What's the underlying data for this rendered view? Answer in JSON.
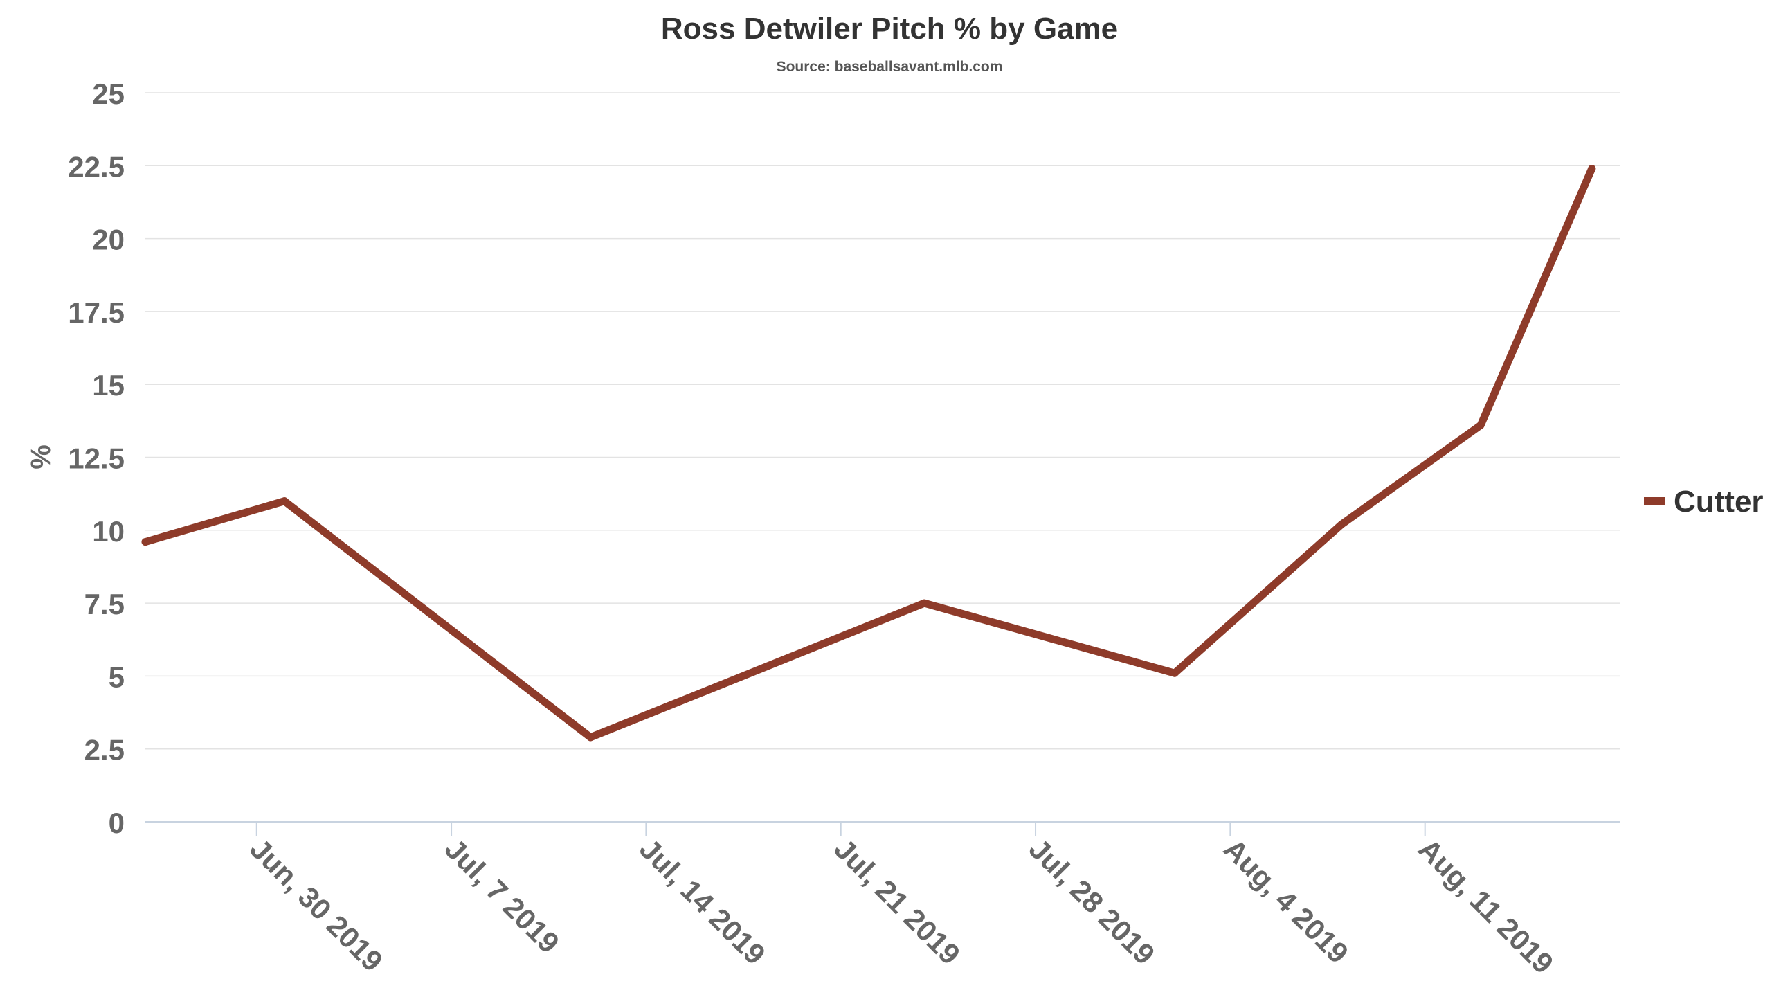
{
  "chart_data": {
    "type": "line",
    "title": "Ross Detwiler Pitch % by Game",
    "subtitle": "Source: baseballsavant.mlb.com",
    "xlabel": "",
    "ylabel": "%",
    "ylim": [
      0,
      25
    ],
    "y_ticks": [
      "0",
      "2.5",
      "5",
      "7.5",
      "10",
      "12.5",
      "15",
      "17.5",
      "20",
      "22.5",
      "25"
    ],
    "x_ticks": [
      {
        "label": "Jun, 30 2019",
        "date": "2019-06-30"
      },
      {
        "label": "Jul, 7 2019",
        "date": "2019-07-07"
      },
      {
        "label": "Jul, 14 2019",
        "date": "2019-07-14"
      },
      {
        "label": "Jul, 21 2019",
        "date": "2019-07-21"
      },
      {
        "label": "Jul, 28 2019",
        "date": "2019-07-28"
      },
      {
        "label": "Aug, 4 2019",
        "date": "2019-08-04"
      },
      {
        "label": "Aug, 11 2019",
        "date": "2019-08-11"
      }
    ],
    "x_range": [
      "2019-06-26",
      "2019-08-18"
    ],
    "grid": true,
    "legend_position": "right",
    "series": [
      {
        "name": "Cutter",
        "color": "#8e3b2a",
        "points": [
          {
            "x": "2019-06-26",
            "y": 9.6
          },
          {
            "x": "2019-07-01",
            "y": 11.0
          },
          {
            "x": "2019-07-12",
            "y": 2.9
          },
          {
            "x": "2019-07-24",
            "y": 7.5
          },
          {
            "x": "2019-08-02",
            "y": 5.1
          },
          {
            "x": "2019-08-08",
            "y": 10.2
          },
          {
            "x": "2019-08-13",
            "y": 13.6
          },
          {
            "x": "2019-08-17",
            "y": 22.4
          }
        ]
      }
    ]
  }
}
